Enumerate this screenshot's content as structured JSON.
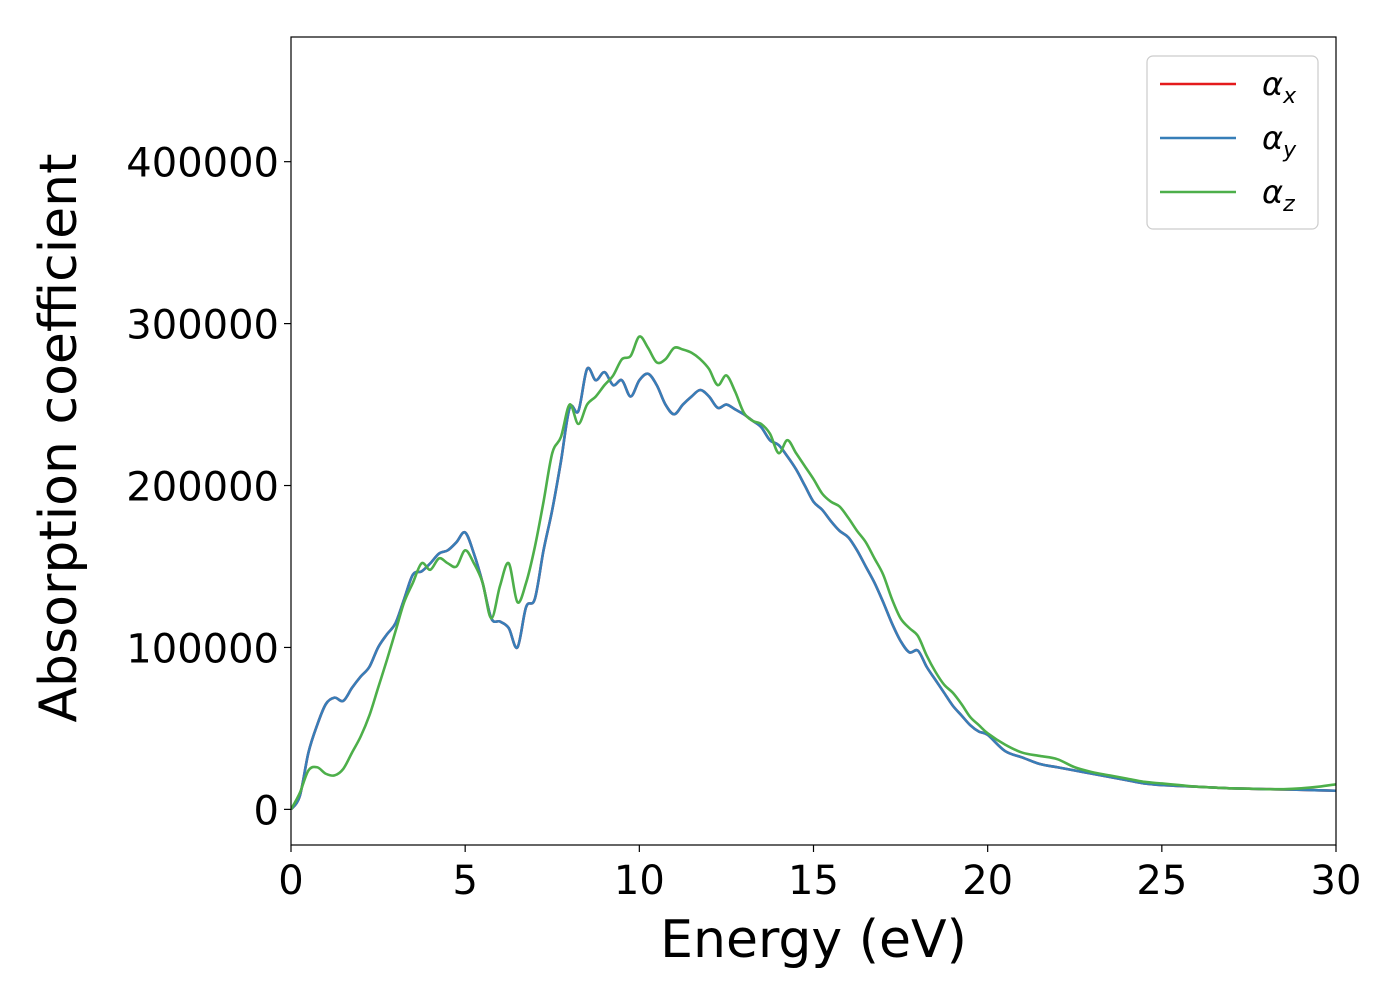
{
  "chart_data": {
    "type": "line",
    "title": "",
    "xlabel": "Energy (eV)",
    "ylabel": "Absorption coefficient",
    "xlim": [
      0,
      30
    ],
    "ylim": [
      -22000,
      477000
    ],
    "xticks": [
      0,
      5,
      10,
      15,
      20,
      25,
      30
    ],
    "xtick_labels": [
      "0",
      "5",
      "10",
      "15",
      "20",
      "25",
      "30"
    ],
    "yticks": [
      0,
      100000,
      200000,
      300000,
      400000
    ],
    "ytick_labels": [
      "0",
      "100000",
      "200000",
      "300000",
      "400000"
    ],
    "grid": false,
    "legend_position": "top-right",
    "series": [
      {
        "name": "α",
        "subscript": "x",
        "color": "#e41a1c",
        "x": [
          0,
          0.25,
          0.5,
          0.75,
          1.0,
          1.25,
          1.5,
          1.75,
          2.0,
          2.25,
          2.5,
          2.75,
          3.0,
          3.25,
          3.5,
          3.75,
          4.0,
          4.25,
          4.5,
          4.75,
          5.0,
          5.25,
          5.5,
          5.75,
          6.0,
          6.25,
          6.5,
          6.75,
          7.0,
          7.25,
          7.5,
          7.75,
          8.0,
          8.25,
          8.5,
          8.75,
          9.0,
          9.25,
          9.5,
          9.75,
          10.0,
          10.25,
          10.5,
          10.75,
          11.0,
          11.25,
          11.5,
          11.75,
          12.0,
          12.25,
          12.5,
          12.75,
          13.0,
          13.25,
          13.5,
          13.75,
          14.0,
          14.25,
          14.5,
          14.75,
          15.0,
          15.25,
          15.5,
          15.75,
          16.0,
          16.25,
          16.5,
          16.75,
          17.0,
          17.25,
          17.5,
          17.75,
          18.0,
          18.25,
          18.5,
          18.75,
          19.0,
          19.25,
          19.5,
          19.75,
          20.0,
          20.5,
          21.0,
          21.5,
          22.0,
          22.5,
          23.0,
          23.5,
          24.0,
          24.5,
          25.0,
          25.5,
          26.0,
          26.5,
          27.0,
          27.5,
          28.0,
          28.5,
          29.0,
          29.5,
          30.0
        ],
        "values": [
          0,
          8000,
          35000,
          52000,
          65000,
          69000,
          67000,
          75000,
          82000,
          88000,
          100000,
          108000,
          115000,
          130000,
          145000,
          147000,
          152000,
          158000,
          160000,
          165000,
          171000,
          158000,
          140000,
          118000,
          116000,
          112000,
          100000,
          125000,
          130000,
          160000,
          185000,
          215000,
          248000,
          246000,
          272000,
          265000,
          270000,
          262000,
          265000,
          255000,
          265000,
          269000,
          262000,
          250000,
          244000,
          250000,
          255000,
          259000,
          255000,
          248000,
          250000,
          247000,
          244000,
          240000,
          236000,
          228000,
          225000,
          218000,
          210000,
          200000,
          190000,
          185000,
          178000,
          172000,
          168000,
          160000,
          150000,
          140000,
          128000,
          115000,
          104000,
          97000,
          98000,
          88000,
          80000,
          72000,
          64000,
          58000,
          52000,
          48000,
          46000,
          36000,
          32000,
          28000,
          26000,
          24000,
          22000,
          20000,
          18000,
          16000,
          15000,
          14500,
          14000,
          13500,
          13000,
          12800,
          12500,
          12300,
          12100,
          11800,
          11500
        ]
      },
      {
        "name": "α",
        "subscript": "y",
        "color": "#377eb8",
        "x": [
          0,
          0.25,
          0.5,
          0.75,
          1.0,
          1.25,
          1.5,
          1.75,
          2.0,
          2.25,
          2.5,
          2.75,
          3.0,
          3.25,
          3.5,
          3.75,
          4.0,
          4.25,
          4.5,
          4.75,
          5.0,
          5.25,
          5.5,
          5.75,
          6.0,
          6.25,
          6.5,
          6.75,
          7.0,
          7.25,
          7.5,
          7.75,
          8.0,
          8.25,
          8.5,
          8.75,
          9.0,
          9.25,
          9.5,
          9.75,
          10.0,
          10.25,
          10.5,
          10.75,
          11.0,
          11.25,
          11.5,
          11.75,
          12.0,
          12.25,
          12.5,
          12.75,
          13.0,
          13.25,
          13.5,
          13.75,
          14.0,
          14.25,
          14.5,
          14.75,
          15.0,
          15.25,
          15.5,
          15.75,
          16.0,
          16.25,
          16.5,
          16.75,
          17.0,
          17.25,
          17.5,
          17.75,
          18.0,
          18.25,
          18.5,
          18.75,
          19.0,
          19.25,
          19.5,
          19.75,
          20.0,
          20.5,
          21.0,
          21.5,
          22.0,
          22.5,
          23.0,
          23.5,
          24.0,
          24.5,
          25.0,
          25.5,
          26.0,
          26.5,
          27.0,
          27.5,
          28.0,
          28.5,
          29.0,
          29.5,
          30.0
        ],
        "values": [
          0,
          8000,
          35000,
          52000,
          65000,
          69000,
          67000,
          75000,
          82000,
          88000,
          100000,
          108000,
          115000,
          130000,
          145000,
          147000,
          152000,
          158000,
          160000,
          165000,
          171000,
          158000,
          140000,
          118000,
          116000,
          112000,
          100000,
          125000,
          130000,
          160000,
          185000,
          215000,
          248000,
          246000,
          272000,
          265000,
          270000,
          262000,
          265000,
          255000,
          265000,
          269000,
          262000,
          250000,
          244000,
          250000,
          255000,
          259000,
          255000,
          248000,
          250000,
          247000,
          244000,
          240000,
          236000,
          228000,
          225000,
          218000,
          210000,
          200000,
          190000,
          185000,
          178000,
          172000,
          168000,
          160000,
          150000,
          140000,
          128000,
          115000,
          104000,
          97000,
          98000,
          88000,
          80000,
          72000,
          64000,
          58000,
          52000,
          48000,
          46000,
          36000,
          32000,
          28000,
          26000,
          24000,
          22000,
          20000,
          18000,
          16000,
          15000,
          14500,
          14000,
          13500,
          13000,
          12800,
          12500,
          12300,
          12100,
          11800,
          11500
        ]
      },
      {
        "name": "α",
        "subscript": "z",
        "color": "#4daf4a",
        "x": [
          0,
          0.25,
          0.5,
          0.75,
          1.0,
          1.25,
          1.5,
          1.75,
          2.0,
          2.25,
          2.5,
          2.75,
          3.0,
          3.25,
          3.5,
          3.75,
          4.0,
          4.25,
          4.5,
          4.75,
          5.0,
          5.25,
          5.5,
          5.75,
          6.0,
          6.25,
          6.5,
          6.75,
          7.0,
          7.25,
          7.5,
          7.75,
          8.0,
          8.25,
          8.5,
          8.75,
          9.0,
          9.25,
          9.5,
          9.75,
          10.0,
          10.25,
          10.5,
          10.75,
          11.0,
          11.25,
          11.5,
          11.75,
          12.0,
          12.25,
          12.5,
          12.75,
          13.0,
          13.25,
          13.5,
          13.75,
          14.0,
          14.25,
          14.5,
          14.75,
          15.0,
          15.25,
          15.5,
          15.75,
          16.0,
          16.25,
          16.5,
          16.75,
          17.0,
          17.25,
          17.5,
          17.75,
          18.0,
          18.25,
          18.5,
          18.75,
          19.0,
          19.25,
          19.5,
          19.75,
          20.0,
          20.5,
          21.0,
          21.5,
          22.0,
          22.5,
          23.0,
          23.5,
          24.0,
          24.5,
          25.0,
          25.5,
          26.0,
          26.5,
          27.0,
          27.5,
          28.0,
          28.5,
          29.0,
          29.5,
          30.0
        ],
        "values": [
          0,
          10000,
          24000,
          26000,
          22000,
          21000,
          25000,
          35000,
          45000,
          58000,
          75000,
          92000,
          110000,
          128000,
          140000,
          152000,
          148000,
          155000,
          152000,
          150000,
          160000,
          152000,
          140000,
          118000,
          138000,
          152000,
          128000,
          140000,
          162000,
          190000,
          220000,
          230000,
          250000,
          238000,
          250000,
          255000,
          262000,
          268000,
          278000,
          280000,
          292000,
          285000,
          276000,
          278000,
          285000,
          284000,
          282000,
          278000,
          272000,
          262000,
          268000,
          258000,
          245000,
          240000,
          238000,
          232000,
          220000,
          228000,
          220000,
          212000,
          204000,
          195000,
          190000,
          187000,
          180000,
          172000,
          165000,
          155000,
          145000,
          130000,
          118000,
          112000,
          107000,
          95000,
          85000,
          77000,
          72000,
          65000,
          57000,
          52000,
          47000,
          40000,
          35000,
          33000,
          31000,
          26000,
          23000,
          21000,
          19000,
          17000,
          16000,
          15000,
          14000,
          13500,
          13000,
          12800,
          12500,
          12500,
          13000,
          14000,
          15500
        ]
      }
    ]
  }
}
